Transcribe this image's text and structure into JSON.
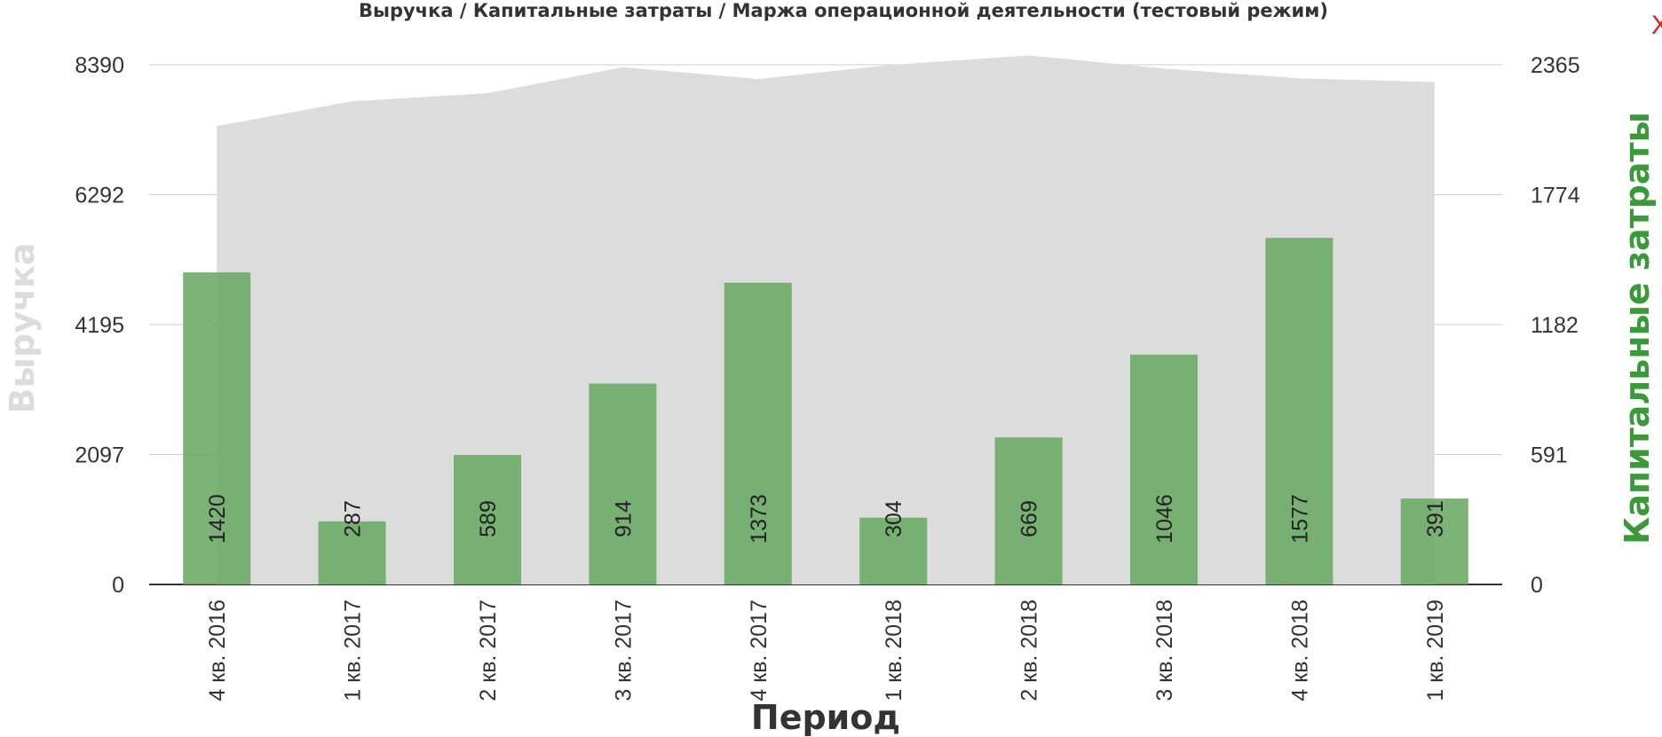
{
  "close_label": "X",
  "chart_data": {
    "type": "bar",
    "title": "Выручка / Капитальные затраты / Маржа операционной деятельности (тестовый режим)",
    "xlabel": "Период",
    "ylabel_left": "Выручка",
    "ylabel_right": "Капитальные затраты",
    "categories": [
      "4 кв. 2016",
      "1 кв. 2017",
      "2 кв. 2017",
      "3 кв. 2017",
      "4 кв. 2017",
      "1 кв. 2018",
      "2 кв. 2018",
      "3 кв. 2018",
      "4 кв. 2018",
      "1 кв. 2019"
    ],
    "left_axis": {
      "ticks": [
        "0",
        "2097",
        "4195",
        "6292",
        "8390"
      ],
      "range": [
        0,
        8390
      ]
    },
    "right_axis": {
      "ticks": [
        "0",
        "591",
        "1182",
        "1774",
        "2365"
      ],
      "range": [
        0,
        2365
      ]
    },
    "series": [
      {
        "name": "Выручка",
        "type": "area",
        "axis": "left",
        "color": "#dcdcdc",
        "values": [
          7400,
          7800,
          7930,
          8350,
          8160,
          8390,
          8540,
          8330,
          8170,
          8110
        ]
      },
      {
        "name": "Капитальные затраты",
        "type": "bar",
        "axis": "right",
        "color": "#6aaa64",
        "values": [
          1420,
          287,
          589,
          914,
          1373,
          304,
          669,
          1046,
          1577,
          391
        ]
      }
    ],
    "grid": true,
    "legend": "none"
  }
}
